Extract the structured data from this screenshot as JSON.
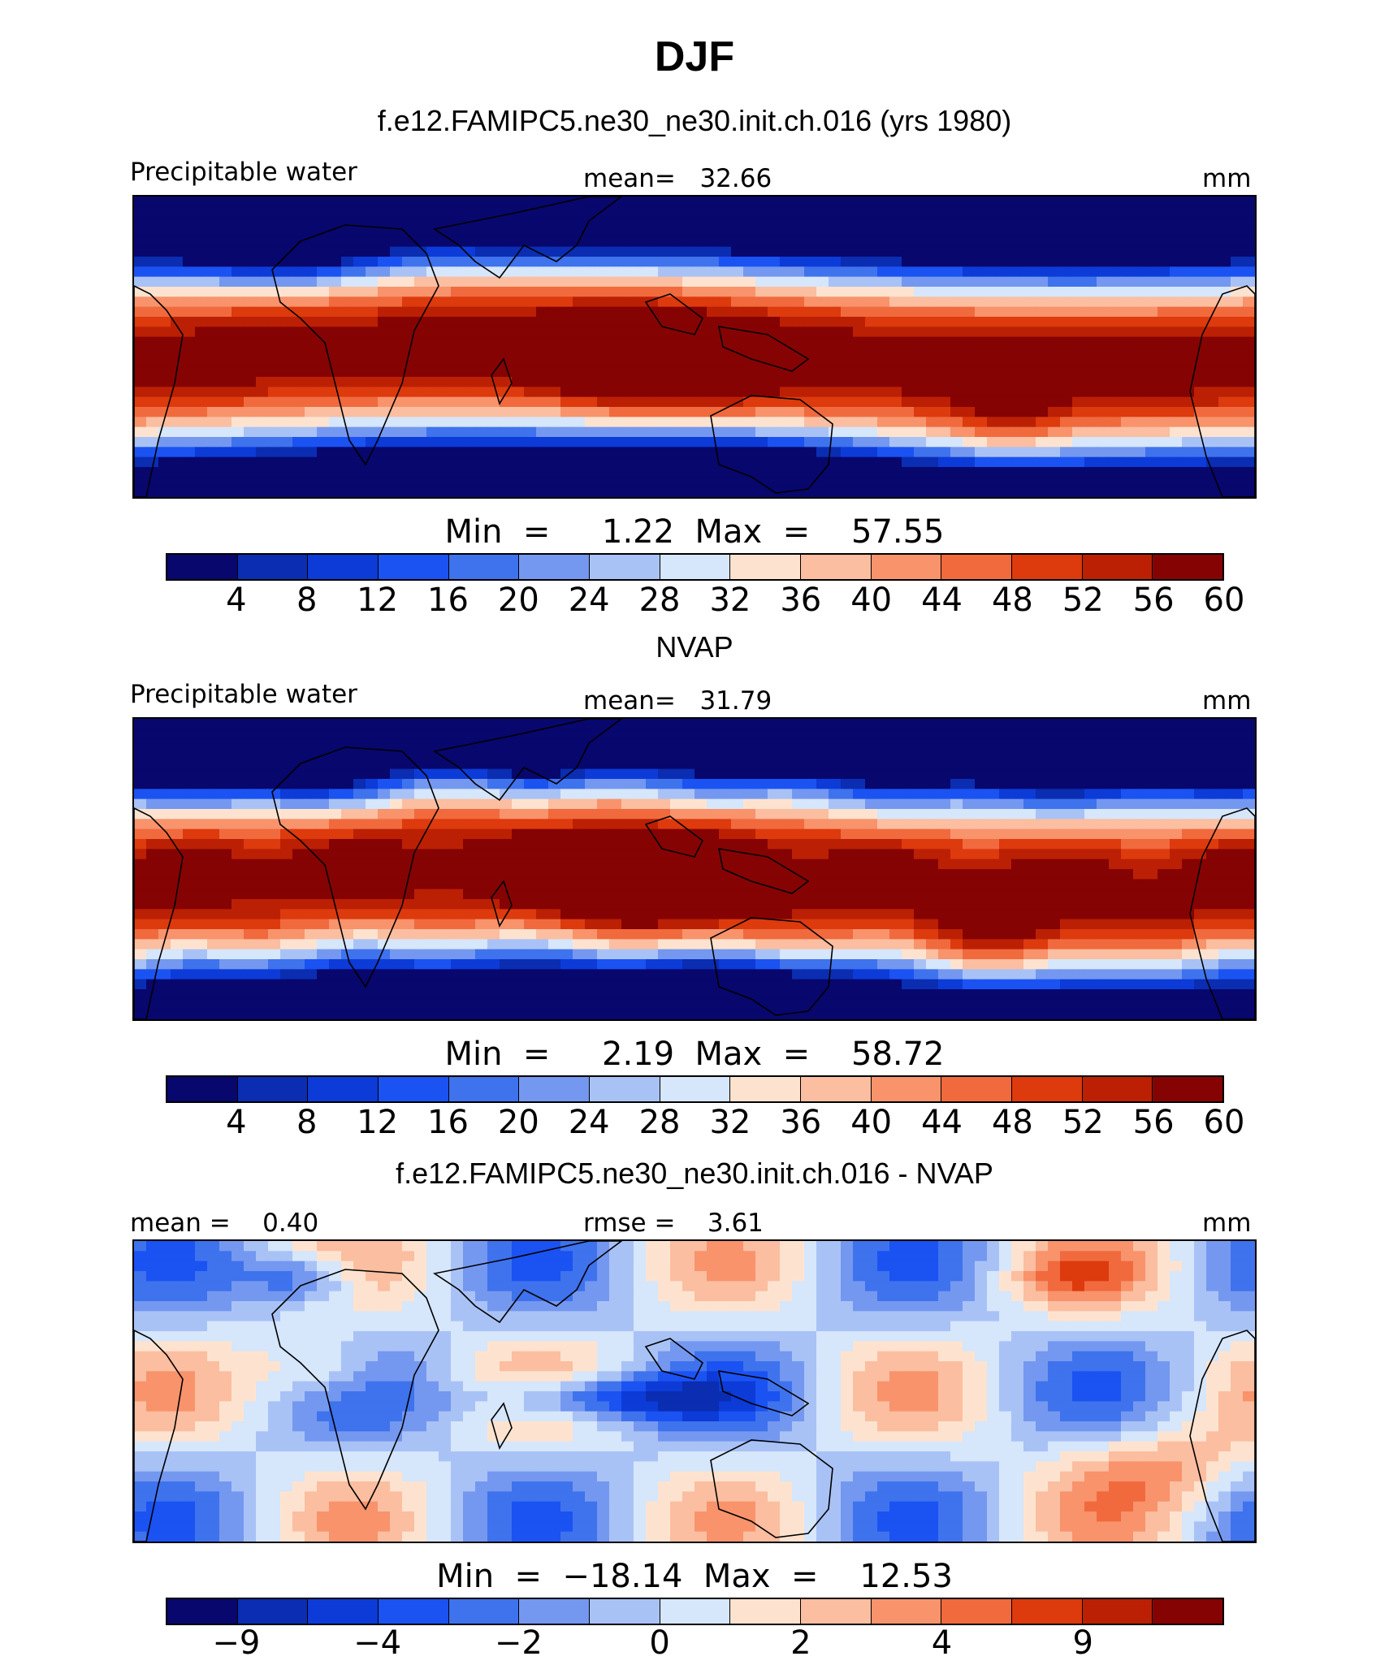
{
  "title": "DJF",
  "colors": {
    "diverging": [
      "#08076d",
      "#0a2db2",
      "#0c3bd8",
      "#1b52f2",
      "#3f72ed",
      "#7498f0",
      "#a9c2f6",
      "#d6e6fb",
      "#fde3cf",
      "#fbbea0",
      "#f8936c",
      "#f06a3e",
      "#dd3a0e",
      "#bb2004",
      "#860303"
    ]
  },
  "panels": [
    {
      "id": "model",
      "title": "f.e12.FAMIPC5.ne30_ne30.init.ch.016 (yrs 1980)",
      "left_label": "Precipitable water",
      "center_label": "mean=   32.66",
      "right_label": "mm",
      "minmax": "Min  =     1.22  Max  =    57.55"
    },
    {
      "id": "obs",
      "title": "NVAP",
      "left_label": "Precipitable water",
      "center_label": "mean=   31.79",
      "right_label": "mm",
      "minmax": "Min  =     2.19  Max  =    58.72"
    },
    {
      "id": "diff",
      "title": "f.e12.FAMIPC5.ne30_ne30.init.ch.016 - NVAP",
      "left_label": "mean =    0.40",
      "center_label": "rmse =    3.61",
      "right_label": "mm",
      "minmax": "Min  =  −18.14  Max  =    12.53"
    }
  ],
  "chart_data": [
    {
      "type": "heatmap",
      "title": "f.e12.FAMIPC5.ne30_ne30.init.ch.016 (yrs 1980)",
      "variable": "Precipitable water",
      "units": "mm",
      "mean": 32.66,
      "min": 1.22,
      "max": 57.55,
      "colorbar_levels": [
        4,
        8,
        12,
        16,
        20,
        24,
        28,
        32,
        36,
        40,
        44,
        48,
        52,
        56,
        60
      ],
      "colorbar_ticks": [
        "4",
        "8",
        "12",
        "16",
        "20",
        "24",
        "28",
        "32",
        "36",
        "40",
        "44",
        "48",
        "52",
        "56",
        "60"
      ]
    },
    {
      "type": "heatmap",
      "title": "NVAP",
      "variable": "Precipitable water",
      "units": "mm",
      "mean": 31.79,
      "min": 2.19,
      "max": 58.72,
      "colorbar_levels": [
        4,
        8,
        12,
        16,
        20,
        24,
        28,
        32,
        36,
        40,
        44,
        48,
        52,
        56,
        60
      ],
      "colorbar_ticks": [
        "4",
        "8",
        "12",
        "16",
        "20",
        "24",
        "28",
        "32",
        "36",
        "40",
        "44",
        "48",
        "52",
        "56",
        "60"
      ]
    },
    {
      "type": "heatmap",
      "title": "f.e12.FAMIPC5.ne30_ne30.init.ch.016 - NVAP",
      "units": "mm",
      "mean": 0.4,
      "rmse": 3.61,
      "min": -18.14,
      "max": 12.53,
      "colorbar_levels": [
        -9,
        -6,
        -4,
        -3,
        -2,
        -1,
        0,
        1,
        2,
        3,
        4,
        6,
        9,
        12
      ],
      "colorbar_ticks": [
        "−9",
        "−4",
        "−2",
        "0",
        "2",
        "4",
        "9"
      ]
    }
  ]
}
